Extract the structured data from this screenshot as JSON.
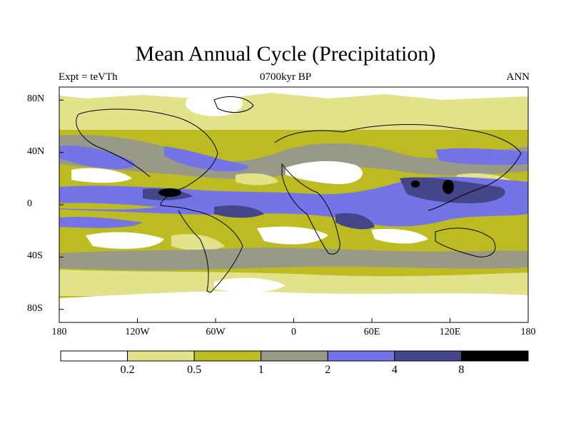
{
  "title": "Mean Annual Cycle (Precipitation)",
  "subtitle_left": "Expt = teVTh",
  "subtitle_center": "0700kyr BP",
  "subtitle_right": "ANN",
  "map": {
    "projection": "cylindrical-equidistant",
    "lon_range": [
      -180,
      180
    ],
    "lat_range": [
      -90,
      90
    ],
    "ylabels": [
      {
        "lat": 80,
        "label": "80N"
      },
      {
        "lat": 40,
        "label": "40N"
      },
      {
        "lat": 0,
        "label": "0"
      },
      {
        "lat": -40,
        "label": "40S"
      },
      {
        "lat": -80,
        "label": "80S"
      }
    ],
    "xlabels": [
      {
        "lon": -180,
        "label": "180"
      },
      {
        "lon": -120,
        "label": "120W"
      },
      {
        "lon": -60,
        "label": "60W"
      },
      {
        "lon": 0,
        "label": "0"
      },
      {
        "lon": 60,
        "label": "60E"
      },
      {
        "lon": 120,
        "label": "120E"
      },
      {
        "lon": 180,
        "label": "180"
      }
    ]
  },
  "colorbar": {
    "levels": [
      "0.2",
      "0.5",
      "1",
      "2",
      "4",
      "8"
    ],
    "colors": [
      "#ffffff",
      "#e2e28a",
      "#bcbc22",
      "#999988",
      "#7474e6",
      "#45458a",
      "#000000"
    ]
  }
}
